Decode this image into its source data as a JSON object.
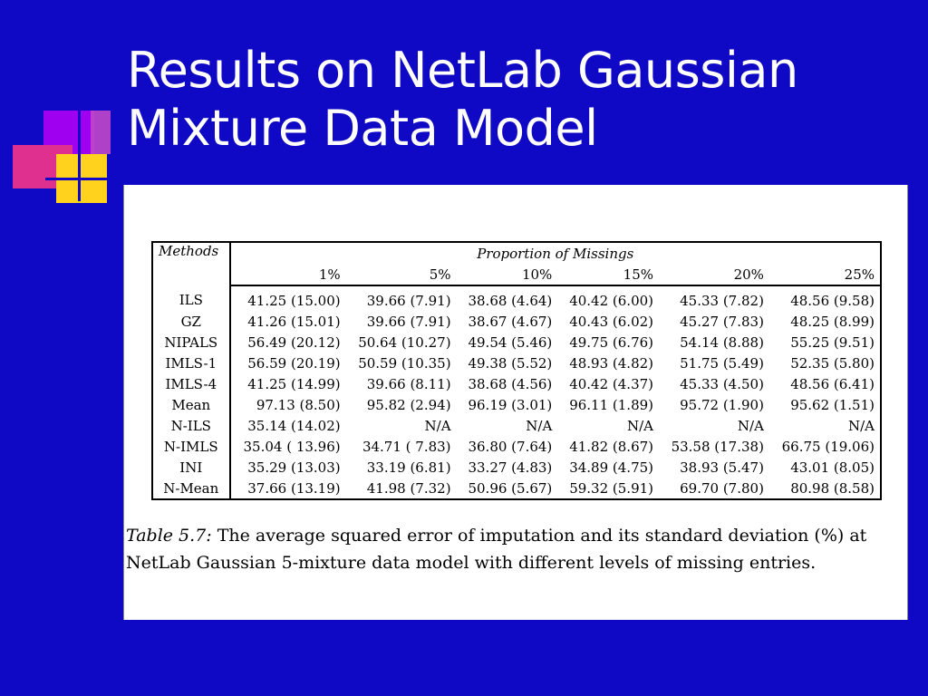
{
  "slide": {
    "title_line1": "Results on NetLab Gaussian",
    "title_line2": "Mixture Data Model",
    "colors": {
      "background": "#0f08c4",
      "title": "#ffffff",
      "deco_purple": "#a000f0",
      "deco_magenta": "#e0308f",
      "deco_yellow": "#ffd21e"
    }
  },
  "table": {
    "methods_header": "Methods",
    "proportion_header": "Proportion of Missings",
    "columns": [
      "1%",
      "5%",
      "10%",
      "15%",
      "20%",
      "25%"
    ],
    "rows": [
      {
        "method": "ILS",
        "values": [
          "41.25 (15.00)",
          "39.66 (7.91)",
          "38.68 (4.64)",
          "40.42 (6.00)",
          "45.33 (7.82)",
          "48.56 (9.58)"
        ]
      },
      {
        "method": "GZ",
        "values": [
          "41.26 (15.01)",
          "39.66 (7.91)",
          "38.67 (4.67)",
          "40.43 (6.02)",
          "45.27 (7.83)",
          "48.25 (8.99)"
        ]
      },
      {
        "method": "NIPALS",
        "values": [
          "56.49 (20.12)",
          "50.64 (10.27)",
          "49.54 (5.46)",
          "49.75 (6.76)",
          "54.14 (8.88)",
          "55.25 (9.51)"
        ]
      },
      {
        "method": "IMLS-1",
        "values": [
          "56.59 (20.19)",
          "50.59 (10.35)",
          "49.38 (5.52)",
          "48.93 (4.82)",
          "51.75 (5.49)",
          "52.35 (5.80)"
        ]
      },
      {
        "method": "IMLS-4",
        "values": [
          "41.25 (14.99)",
          "39.66 (8.11)",
          "38.68 (4.56)",
          "40.42 (4.37)",
          "45.33 (4.50)",
          "48.56 (6.41)"
        ]
      },
      {
        "method": "Mean",
        "values": [
          "97.13 (8.50)",
          "95.82 (2.94)",
          "96.19 (3.01)",
          "96.11 (1.89)",
          "95.72 (1.90)",
          "95.62 (1.51)"
        ]
      },
      {
        "method": "N-ILS",
        "values": [
          "35.14 (14.02)",
          "N/A",
          "N/A",
          "N/A",
          "N/A",
          "N/A"
        ]
      },
      {
        "method": "N-IMLS",
        "values": [
          "35.04 ( 13.96)",
          "34.71 ( 7.83)",
          "36.80 (7.64)",
          "41.82 (8.67)",
          "53.58 (17.38)",
          "66.75 (19.06)"
        ]
      },
      {
        "method": "INI",
        "values": [
          "35.29 (13.03)",
          "33.19 (6.81)",
          "33.27 (4.83)",
          "34.89 (4.75)",
          "38.93 (5.47)",
          "43.01 (8.05)"
        ]
      },
      {
        "method": "N-Mean",
        "values": [
          "37.66 (13.19)",
          "41.98 (7.32)",
          "50.96 (5.67)",
          "59.32 (5.91)",
          "69.70 (7.80)",
          "80.98 (8.58)"
        ]
      }
    ]
  },
  "caption": {
    "label": "Table 5.7:",
    "text": " The average squared error of imputation and its standard deviation (%) at NetLab Gaussian 5-mixture data model with different levels of missing entries."
  }
}
